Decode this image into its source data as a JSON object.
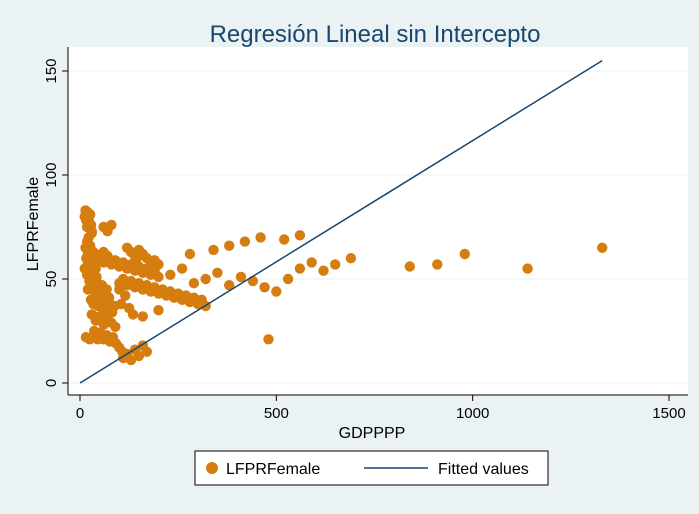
{
  "chart_data": {
    "type": "scatter",
    "title": "Regresión Lineal sin Intercepto",
    "xlabel": "GDPPPP",
    "ylabel": "LFPRFemale",
    "xlim": [
      0,
      1500
    ],
    "ylim": [
      0,
      160
    ],
    "xticks": [
      0,
      500,
      1000,
      1500
    ],
    "yticks": [
      0,
      50,
      100,
      150
    ],
    "grid": "horizontal",
    "legend_position": "bottom",
    "colors": {
      "background": "#eaf2f3",
      "plot_background": "#ffffff",
      "title": "#1a476f",
      "markers": "#d57d0e",
      "fitted_line": "#1a476f",
      "axis": "#000000",
      "grid": "#eaf2f3"
    },
    "series": [
      {
        "name": "LFPRFemale",
        "kind": "scatter",
        "x": [
          12,
          14,
          16,
          18,
          20,
          22,
          24,
          26,
          28,
          30,
          14,
          18,
          22,
          26,
          30,
          34,
          16,
          20,
          24,
          28,
          32,
          36,
          40,
          44,
          12,
          18,
          24,
          30,
          36,
          42,
          48,
          20,
          26,
          32,
          38,
          44,
          50,
          56,
          62,
          68,
          74,
          28,
          34,
          40,
          46,
          52,
          58,
          64,
          70,
          76,
          82,
          88,
          30,
          40,
          50,
          60,
          70,
          80,
          90,
          36,
          44,
          52,
          60,
          68,
          76,
          84,
          92,
          100,
          108,
          40,
          50,
          60,
          70,
          80,
          90,
          100,
          110,
          120,
          130,
          140,
          150,
          160,
          170,
          180,
          190,
          200,
          100,
          110,
          120,
          130,
          140,
          150,
          160,
          170,
          180,
          190,
          200,
          210,
          220,
          230,
          240,
          250,
          260,
          270,
          280,
          290,
          300,
          310,
          320,
          120,
          130,
          140,
          150,
          160,
          170,
          180,
          190,
          200,
          110,
          120,
          130,
          140,
          150,
          160,
          170,
          100,
          105,
          115,
          125,
          135,
          60,
          70,
          80,
          15,
          25,
          35,
          45,
          55,
          145,
          115,
          230,
          260,
          290,
          320,
          350,
          380,
          410,
          440,
          470,
          500,
          530,
          560,
          590,
          620,
          650,
          690,
          840,
          910,
          980,
          1140,
          1330,
          280,
          340,
          380,
          420,
          460,
          520,
          560,
          20,
          40,
          60,
          200,
          160,
          480
        ],
        "y": [
          80,
          83,
          78,
          75,
          82,
          79,
          77,
          81,
          76,
          73,
          65,
          68,
          70,
          66,
          72,
          63,
          60,
          62,
          58,
          64,
          57,
          61,
          55,
          59,
          55,
          52,
          49,
          53,
          48,
          51,
          47,
          45,
          50,
          46,
          44,
          48,
          42,
          47,
          43,
          45,
          41,
          40,
          38,
          42,
          37,
          39,
          36,
          41,
          35,
          38,
          34,
          37,
          33,
          30,
          32,
          28,
          31,
          29,
          27,
          25,
          22,
          24,
          21,
          23,
          20,
          22,
          19,
          17,
          15,
          62,
          60,
          58,
          61,
          57,
          59,
          56,
          58,
          55,
          57,
          54,
          56,
          53,
          55,
          52,
          54,
          51,
          48,
          50,
          47,
          49,
          46,
          48,
          45,
          47,
          44,
          46,
          43,
          45,
          42,
          44,
          41,
          43,
          40,
          42,
          39,
          41,
          38,
          40,
          37,
          65,
          63,
          61,
          64,
          62,
          60,
          58,
          59,
          57,
          12,
          14,
          11,
          16,
          13,
          18,
          15,
          45,
          38,
          42,
          36,
          33,
          75,
          73,
          76,
          22,
          21,
          22,
          21,
          22,
          60,
          56,
          52,
          55,
          48,
          50,
          53,
          47,
          51,
          49,
          46,
          44,
          50,
          55,
          58,
          54,
          57,
          60,
          56,
          57,
          62,
          55,
          65,
          62,
          64,
          66,
          68,
          70,
          69,
          71,
          58,
          61,
          63,
          35,
          32,
          21
        ]
      },
      {
        "name": "Fitted values",
        "kind": "line",
        "x": [
          0,
          1330
        ],
        "y": [
          0,
          155
        ]
      }
    ]
  }
}
